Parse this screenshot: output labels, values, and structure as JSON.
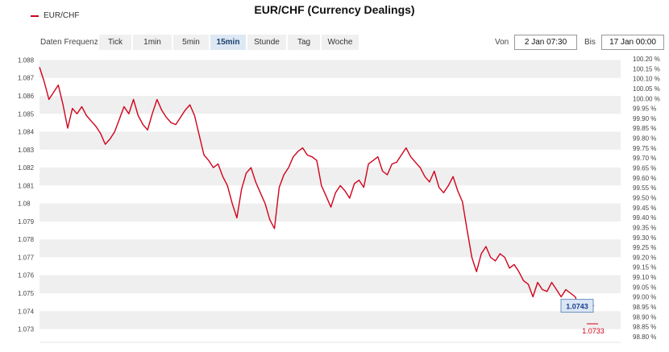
{
  "title": "EUR/CHF (Currency Dealings)",
  "legend": {
    "series_name": "EUR/CHF",
    "color": "#d0021b"
  },
  "controls": {
    "frequency_label": "Daten Frequenz",
    "tabs": [
      "Tick",
      "1min",
      "5min",
      "15min",
      "Stunde",
      "Tag",
      "Woche"
    ],
    "active_tab": "15min",
    "from_label": "Von",
    "from_value": "2 Jan 07:30",
    "to_label": "Bis",
    "to_value": "17 Jan 00:00"
  },
  "chart_data": {
    "type": "line",
    "series": [
      {
        "name": "EUR/CHF",
        "color": "#d0021b",
        "values": [
          1.0876,
          1.0868,
          1.0858,
          1.0862,
          1.0866,
          1.0855,
          1.0842,
          1.0853,
          1.085,
          1.0854,
          1.0849,
          1.0846,
          1.0843,
          1.0839,
          1.0833,
          1.0836,
          1.084,
          1.0847,
          1.0854,
          1.085,
          1.0858,
          1.0849,
          1.0844,
          1.0841,
          1.085,
          1.0858,
          1.0852,
          1.0848,
          1.0845,
          1.0844,
          1.0848,
          1.0852,
          1.0855,
          1.0849,
          1.0838,
          1.0827,
          1.0824,
          1.082,
          1.0822,
          1.0815,
          1.081,
          1.08,
          1.0792,
          1.0808,
          1.0817,
          1.082,
          1.0812,
          1.0806,
          1.08,
          1.0791,
          1.0786,
          1.0809,
          1.0816,
          1.082,
          1.0826,
          1.0829,
          1.0831,
          1.0827,
          1.0826,
          1.0824,
          1.081,
          1.0804,
          1.0798,
          1.0806,
          1.081,
          1.0807,
          1.0803,
          1.0811,
          1.0813,
          1.0809,
          1.0822,
          1.0824,
          1.0826,
          1.0818,
          1.0816,
          1.0822,
          1.0823,
          1.0827,
          1.0831,
          1.0826,
          1.0823,
          1.082,
          1.0815,
          1.0812,
          1.0818,
          1.0809,
          1.0806,
          1.081,
          1.0815,
          1.0807,
          1.0801,
          1.0785,
          1.077,
          1.0762,
          1.0772,
          1.0776,
          1.077,
          1.0768,
          1.0772,
          1.077,
          1.0764,
          1.0766,
          1.0762,
          1.0757,
          1.0755,
          1.0748,
          1.0756,
          1.0752,
          1.0751,
          1.0756,
          1.0752,
          1.0748,
          1.0752,
          1.075,
          1.0748,
          1.074,
          1.0741,
          1.0744,
          1.0743
        ],
        "last_value": 1.0743,
        "last_value_label": "1.0743",
        "reference_value_label": "1.0733"
      }
    ],
    "ylim": [
      1.0728,
      1.0882
    ],
    "y_ticks": [
      1.088,
      1.087,
      1.086,
      1.085,
      1.084,
      1.083,
      1.082,
      1.081,
      1.08,
      1.079,
      1.078,
      1.077,
      1.076,
      1.075,
      1.074,
      1.073
    ],
    "y_tick_labels": [
      "1.088",
      "1.087",
      "1.086",
      "1.085",
      "1.084",
      "1.083",
      "1.082",
      "1.081",
      "1.08",
      "1.079",
      "1.078",
      "1.077",
      "1.076",
      "1.075",
      "1.074",
      "1.073"
    ],
    "right_tick_labels": [
      "100.20 %",
      "100.15 %",
      "100.10 %",
      "100.05 %",
      "100.00 %",
      "99.95 %",
      "99.90 %",
      "99.85 %",
      "99.80 %",
      "99.75 %",
      "99.70 %",
      "99.65 %",
      "99.60 %",
      "99.55 %",
      "99.50 %",
      "99.45 %",
      "99.40 %",
      "99.35 %",
      "99.30 %",
      "99.25 %",
      "99.20 %",
      "99.15 %",
      "99.10 %",
      "99.05 %",
      "99.00 %",
      "98.95 %",
      "98.90 %",
      "98.85 %",
      "98.80 %"
    ],
    "grid": true,
    "legend_position": "top-left"
  }
}
